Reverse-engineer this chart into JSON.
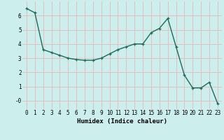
{
  "x": [
    0,
    1,
    2,
    3,
    4,
    5,
    6,
    7,
    8,
    9,
    10,
    11,
    12,
    13,
    14,
    15,
    16,
    17,
    18,
    19,
    20,
    21,
    22,
    23
  ],
  "y": [
    6.5,
    6.2,
    3.6,
    3.4,
    3.2,
    3.0,
    2.9,
    2.85,
    2.85,
    3.0,
    3.3,
    3.6,
    3.8,
    4.0,
    4.0,
    4.8,
    5.1,
    5.8,
    3.8,
    1.8,
    0.9,
    0.9,
    1.3,
    -0.2
  ],
  "line_color": "#1a6b5a",
  "marker": "+",
  "bg_color": "#cceeed",
  "grid_color": "#e8b8b8",
  "xlabel": "Humidex (Indice chaleur)",
  "ylim": [
    -0.6,
    7.0
  ],
  "xlim": [
    -0.5,
    23.5
  ],
  "yticks": [
    0,
    1,
    2,
    3,
    4,
    5,
    6
  ],
  "ytick_labels": [
    "-0",
    "1",
    "2",
    "3",
    "4",
    "5",
    "6"
  ],
  "xticks": [
    0,
    1,
    2,
    3,
    4,
    5,
    6,
    7,
    8,
    9,
    10,
    11,
    12,
    13,
    14,
    15,
    16,
    17,
    18,
    19,
    20,
    21,
    22,
    23
  ],
  "xtick_labels": [
    "0",
    "1",
    "2",
    "3",
    "4",
    "5",
    "6",
    "7",
    "8",
    "9",
    "10",
    "11",
    "12",
    "13",
    "14",
    "15",
    "16",
    "17",
    "18",
    "19",
    "20",
    "21",
    "22",
    "23"
  ],
  "axis_fontsize": 6.5,
  "tick_fontsize": 5.5,
  "linewidth": 1.0,
  "markersize": 3.5,
  "markeredgewidth": 0.9
}
